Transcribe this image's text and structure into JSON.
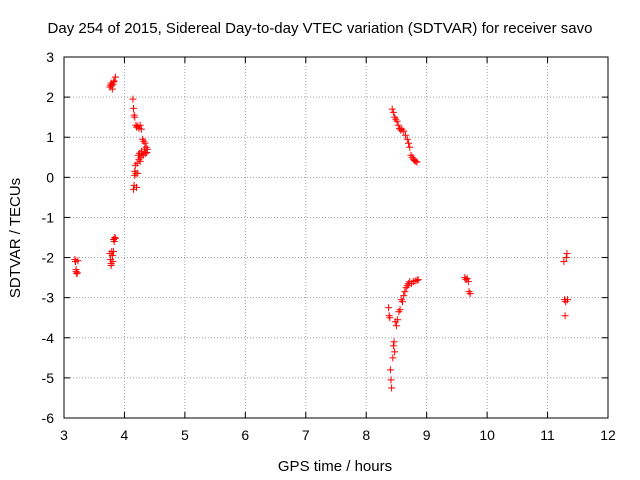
{
  "chart_data": {
    "type": "scatter",
    "title": "Day 254 of 2015, Sidereal Day-to-day VTEC variation (SDTVAR) for receiver savo",
    "xlabel": "GPS time / hours",
    "ylabel": "SDTVAR / TECUs",
    "xlim": [
      3,
      12
    ],
    "ylim": [
      -6,
      3
    ],
    "xticks": [
      3,
      4,
      5,
      6,
      7,
      8,
      9,
      10,
      11,
      12
    ],
    "yticks": [
      -6,
      -5,
      -4,
      -3,
      -2,
      -1,
      0,
      1,
      2,
      3
    ],
    "grid": true,
    "marker": "+",
    "colors": {
      "marker": "#ff0000",
      "grid": "#a0a0a0",
      "axis": "#000000"
    },
    "series": [
      {
        "name": "SDTVAR",
        "points": [
          [
            3.18,
            -2.05
          ],
          [
            3.19,
            -2.1
          ],
          [
            3.2,
            -2.3
          ],
          [
            3.2,
            -2.35
          ],
          [
            3.21,
            -2.4
          ],
          [
            3.22,
            -2.38
          ],
          [
            3.23,
            -2.08
          ],
          [
            3.76,
            2.25
          ],
          [
            3.77,
            2.3
          ],
          [
            3.78,
            2.35
          ],
          [
            3.79,
            2.28
          ],
          [
            3.8,
            2.2
          ],
          [
            3.81,
            2.32
          ],
          [
            3.82,
            2.38
          ],
          [
            3.83,
            2.4
          ],
          [
            3.85,
            2.5
          ],
          [
            3.76,
            -1.9
          ],
          [
            3.77,
            -2.05
          ],
          [
            3.78,
            -2.15
          ],
          [
            3.78,
            -2.2
          ],
          [
            3.79,
            -1.85
          ],
          [
            3.8,
            -1.95
          ],
          [
            3.81,
            -2.1
          ],
          [
            3.82,
            -1.55
          ],
          [
            3.83,
            -1.6
          ],
          [
            3.84,
            -1.5
          ],
          [
            3.85,
            -1.52
          ],
          [
            3.82,
            -1.85
          ],
          [
            4.14,
            1.95
          ],
          [
            4.15,
            1.72
          ],
          [
            4.16,
            1.55
          ],
          [
            4.17,
            1.5
          ],
          [
            4.19,
            1.3
          ],
          [
            4.2,
            1.25
          ],
          [
            4.22,
            1.28
          ],
          [
            4.24,
            1.22
          ],
          [
            4.26,
            1.3
          ],
          [
            4.28,
            1.2
          ],
          [
            4.15,
            -0.3
          ],
          [
            4.16,
            -0.2
          ],
          [
            4.17,
            0.05
          ],
          [
            4.17,
            0.15
          ],
          [
            4.18,
            0.3
          ],
          [
            4.19,
            0.1
          ],
          [
            4.2,
            -0.25
          ],
          [
            4.21,
            0.35
          ],
          [
            4.22,
            0.1
          ],
          [
            4.23,
            0.55
          ],
          [
            4.24,
            0.45
          ],
          [
            4.25,
            0.6
          ],
          [
            4.26,
            0.4
          ],
          [
            4.27,
            0.5
          ],
          [
            4.28,
            0.65
          ],
          [
            4.29,
            0.58
          ],
          [
            4.3,
            0.95
          ],
          [
            4.31,
            0.55
          ],
          [
            4.32,
            0.9
          ],
          [
            4.33,
            0.7
          ],
          [
            4.34,
            0.85
          ],
          [
            4.35,
            0.6
          ],
          [
            4.36,
            0.75
          ],
          [
            4.37,
            0.62
          ],
          [
            4.38,
            0.7
          ],
          [
            8.43,
            1.7
          ],
          [
            8.45,
            1.62
          ],
          [
            8.47,
            1.5
          ],
          [
            8.49,
            1.45
          ],
          [
            8.51,
            1.4
          ],
          [
            8.53,
            1.3
          ],
          [
            8.55,
            1.22
          ],
          [
            8.57,
            1.18
          ],
          [
            8.59,
            1.2
          ],
          [
            8.62,
            1.15
          ],
          [
            8.65,
            1.05
          ],
          [
            8.68,
            0.95
          ],
          [
            8.7,
            0.85
          ],
          [
            8.72,
            0.75
          ],
          [
            8.74,
            0.55
          ],
          [
            8.76,
            0.5
          ],
          [
            8.78,
            0.45
          ],
          [
            8.8,
            0.42
          ],
          [
            8.82,
            0.4
          ],
          [
            8.84,
            0.38
          ],
          [
            8.37,
            -3.25
          ],
          [
            8.38,
            -3.45
          ],
          [
            8.39,
            -3.5
          ],
          [
            8.4,
            -4.8
          ],
          [
            8.41,
            -5.05
          ],
          [
            8.42,
            -5.25
          ],
          [
            8.44,
            -4.5
          ],
          [
            8.45,
            -4.2
          ],
          [
            8.46,
            -4.1
          ],
          [
            8.47,
            -4.35
          ],
          [
            8.48,
            -3.6
          ],
          [
            8.5,
            -3.7
          ],
          [
            8.52,
            -3.55
          ],
          [
            8.54,
            -3.35
          ],
          [
            8.56,
            -3.3
          ],
          [
            8.58,
            -3.05
          ],
          [
            8.6,
            -3.1
          ],
          [
            8.62,
            -2.95
          ],
          [
            8.64,
            -2.85
          ],
          [
            8.66,
            -2.75
          ],
          [
            8.68,
            -2.7
          ],
          [
            8.7,
            -2.65
          ],
          [
            8.72,
            -2.6
          ],
          [
            8.75,
            -2.65
          ],
          [
            8.78,
            -2.6
          ],
          [
            8.81,
            -2.58
          ],
          [
            8.84,
            -2.57
          ],
          [
            8.86,
            -2.55
          ],
          [
            9.63,
            -2.5
          ],
          [
            9.65,
            -2.55
          ],
          [
            9.67,
            -2.52
          ],
          [
            9.69,
            -2.6
          ],
          [
            9.7,
            -2.85
          ],
          [
            9.72,
            -2.9
          ],
          [
            11.27,
            -2.1
          ],
          [
            11.28,
            -3.05
          ],
          [
            11.29,
            -3.45
          ],
          [
            11.3,
            -3.1
          ],
          [
            11.31,
            -2.0
          ],
          [
            11.32,
            -1.9
          ],
          [
            11.33,
            -3.05
          ]
        ]
      }
    ]
  }
}
